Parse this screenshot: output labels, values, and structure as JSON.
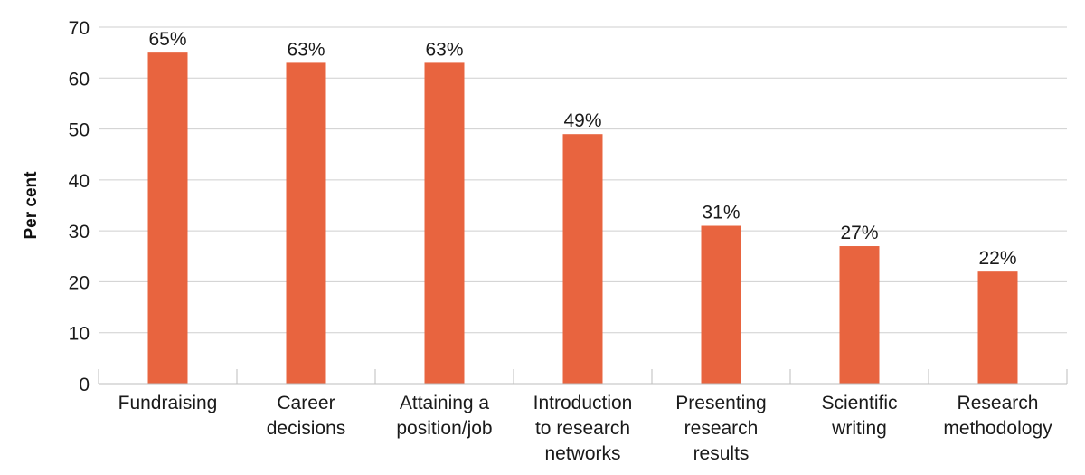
{
  "chart_data": {
    "type": "bar",
    "title": "",
    "xlabel": "",
    "ylabel": "Per cent",
    "ylim": [
      0,
      70
    ],
    "yticks": [
      0,
      10,
      20,
      30,
      40,
      50,
      60,
      70
    ],
    "grid": true,
    "legend": "none",
    "bar_color": "#e8643f",
    "categories": [
      [
        "Fundraising"
      ],
      [
        "Career",
        "decisions"
      ],
      [
        "Attaining a",
        "position/job"
      ],
      [
        "Introduction",
        "to research",
        "networks"
      ],
      [
        "Presenting",
        "research",
        "results"
      ],
      [
        "Scientific",
        "writing"
      ],
      [
        "Research",
        "methodology"
      ]
    ],
    "values": [
      65,
      63,
      63,
      49,
      31,
      27,
      22
    ],
    "data_labels": [
      "65%",
      "63%",
      "63%",
      "49%",
      "31%",
      "27%",
      "22%"
    ]
  }
}
